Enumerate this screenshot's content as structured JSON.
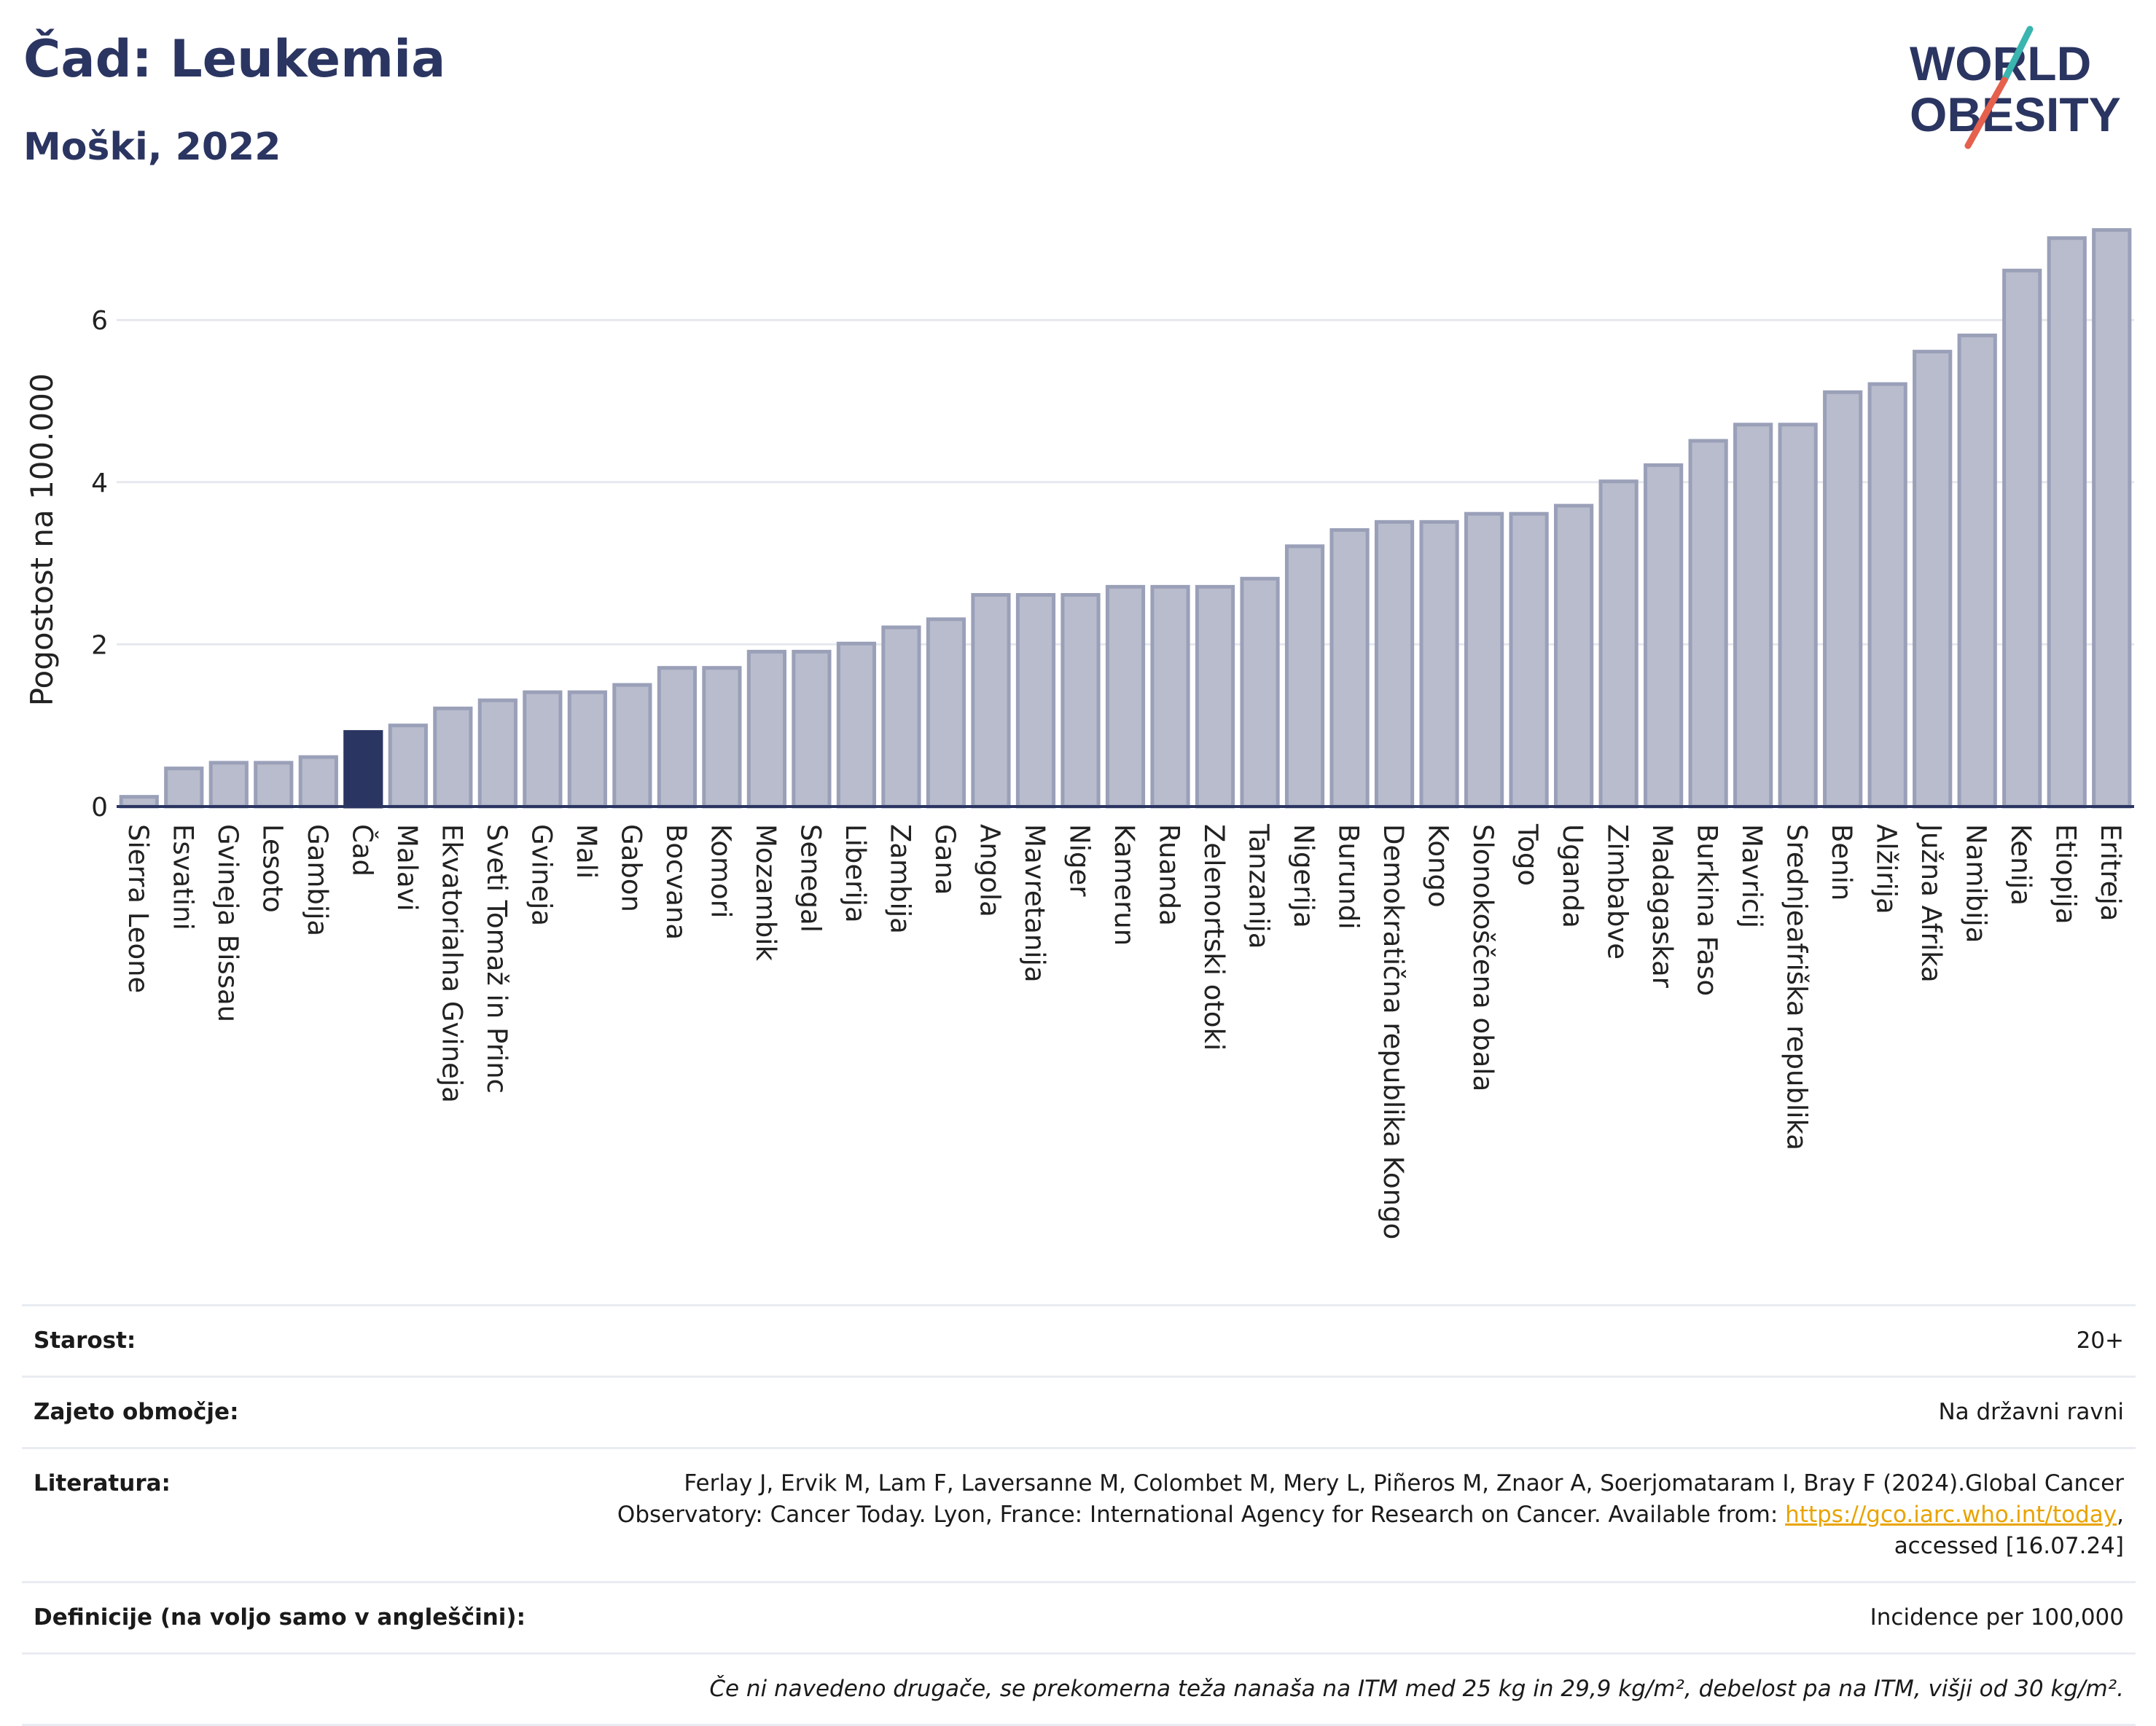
{
  "header": {
    "title": "Čad: Leukemia",
    "subtitle": "Moški, 2022"
  },
  "logo": {
    "line1": "WORLD",
    "line2": "OBESITY",
    "colors": {
      "text": "#2b3561",
      "slash_teal": "#3ab5b0",
      "slash_red": "#e5604d"
    }
  },
  "colors": {
    "bar_fill": "#b8bccc",
    "bar_stroke": "#9aa0b8",
    "highlight": "#2b3561",
    "axis": "#2b3561"
  },
  "chart_data": {
    "type": "bar",
    "ylabel": "Pogostost na 100.000",
    "ylim": [
      0,
      7.3
    ],
    "yticks": [
      0,
      2,
      4,
      6
    ],
    "highlight": "Čad",
    "grid": true,
    "categories": [
      "Sierra Leone",
      "Esvatini",
      "Gvineja Bissau",
      "Lesoto",
      "Gambija",
      "Čad",
      "Malavi",
      "Ekvatorialna Gvineja",
      "Sveti Tomaž in Princ",
      "Gvineja",
      "Mali",
      "Gabon",
      "Bocvana",
      "Komori",
      "Mozambik",
      "Senegal",
      "Liberija",
      "Zambija",
      "Gana",
      "Angola",
      "Mavretanija",
      "Niger",
      "Kamerun",
      "Ruanda",
      "Zelenortski otoki",
      "Tanzanija",
      "Nigerija",
      "Burundi",
      "Demokratična republika Kongo",
      "Kongo",
      "Slonokoščena obala",
      "Togo",
      "Uganda",
      "Zimbabve",
      "Madagaskar",
      "Burkina Faso",
      "Mavricij",
      "Srednjeafriška republika",
      "Benin",
      "Alžirija",
      "Južna Afrika",
      "Namibija",
      "Kenija",
      "Etiopija",
      "Eritreja"
    ],
    "values": [
      0.12,
      0.47,
      0.54,
      0.54,
      0.61,
      0.92,
      1.0,
      1.21,
      1.31,
      1.41,
      1.41,
      1.5,
      1.71,
      1.71,
      1.91,
      1.91,
      2.01,
      2.21,
      2.31,
      2.61,
      2.61,
      2.61,
      2.71,
      2.71,
      2.71,
      2.81,
      3.21,
      3.41,
      3.51,
      3.51,
      3.61,
      3.61,
      3.71,
      4.01,
      4.21,
      4.51,
      4.71,
      4.71,
      5.11,
      5.21,
      5.61,
      5.81,
      6.61,
      7.01,
      7.11
    ]
  },
  "meta": {
    "age_label": "Starost:",
    "age_value": "20+",
    "coverage_label": "Zajeto območje:",
    "coverage_value": "Na državni ravni",
    "lit_label": "Literatura:",
    "lit_text_1": "Ferlay J, Ervik M, Lam F, Laversanne M, Colombet M, Mery L, Piñeros M, Znaor A, Soerjomataram I, Bray F (2024).Global Cancer",
    "lit_text_2": "Observatory: Cancer Today. Lyon, France: International Agency for Research on Cancer. Available from: ",
    "lit_link": "https://gco.iarc.who.int/today",
    "lit_text_3": ",",
    "lit_text_4": "accessed [16.07.24]",
    "def_label": "Definicije (na voljo samo v angleščini):",
    "def_value": "Incidence per 100,000",
    "note": "Če ni navedeno drugače, se prekomerna teža nanaša na ITM med 25 kg in 29,9 kg/m², debelost pa na ITM, višji od 30 kg/m²."
  }
}
